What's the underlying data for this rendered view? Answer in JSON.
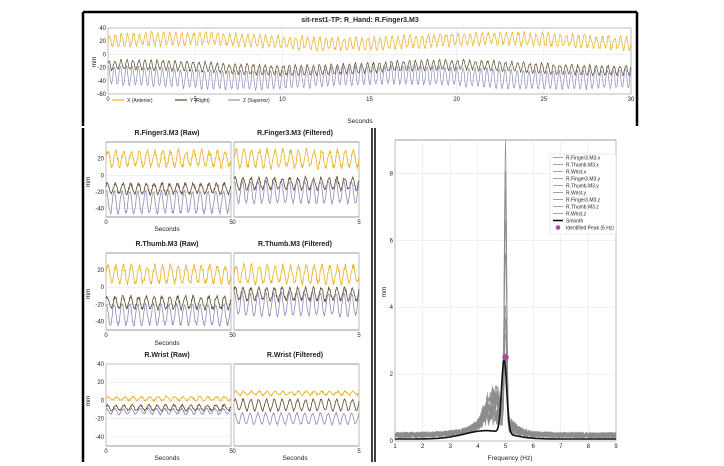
{
  "colors": {
    "x": "#e8b01c",
    "y": "#5a4a28",
    "z": "#8e8bb8",
    "spectrum": "#8c8c8c",
    "smooth": "#111111",
    "peak": "#b0479a"
  },
  "legend_top": {
    "x": "X (Anterior)",
    "y": "Y (Right)",
    "z": "Z (Superior)"
  },
  "chart_data": [
    {
      "id": "top",
      "type": "line",
      "title": "sit-rest1-TP: R_Hand: R.Finger3.M3",
      "xlabel": "Seconds",
      "ylabel": "mm",
      "xlim": [
        0,
        30
      ],
      "ylim": [
        -60,
        40
      ],
      "xticks": [
        0,
        5,
        10,
        15,
        20,
        25,
        30
      ],
      "yticks": [
        -60,
        -40,
        -20,
        0,
        20,
        40
      ],
      "frequency_hz": 2.9,
      "series": [
        {
          "name": "X (Anterior)",
          "offset": 20,
          "amplitude": 9,
          "noise": 3
        },
        {
          "name": "Y (Right)",
          "offset": -20,
          "amplitude": 7,
          "noise": 2
        },
        {
          "name": "Z (Superior)",
          "offset": -35,
          "amplitude": 14,
          "noise": 2
        }
      ]
    },
    {
      "id": "finger-raw",
      "type": "line",
      "title": "R.Finger3.M3 (Raw)",
      "xlabel": "Seconds",
      "ylabel": "mm",
      "xlim": [
        0,
        5
      ],
      "ylim": [
        -50,
        40
      ],
      "xticks": [
        0,
        5
      ],
      "yticks": [
        -40,
        -20,
        0,
        20
      ],
      "frequency_hz": 3.2,
      "series": [
        {
          "name": "x",
          "offset": 20,
          "amplitude": 9,
          "noise": 3
        },
        {
          "name": "y",
          "offset": -16,
          "amplitude": 6,
          "noise": 2
        },
        {
          "name": "z",
          "offset": -32,
          "amplitude": 13,
          "noise": 2
        }
      ]
    },
    {
      "id": "finger-filtered",
      "type": "line",
      "title": "R.Finger3.M3 (Filtered)",
      "xlabel": "",
      "ylabel": "",
      "xlim": [
        0,
        5
      ],
      "ylim": [
        -50,
        40
      ],
      "xticks": [
        0,
        5
      ],
      "yticks": [],
      "frequency_hz": 3.2,
      "series": [
        {
          "name": "x",
          "offset": 20,
          "amplitude": 10,
          "noise": 3
        },
        {
          "name": "y",
          "offset": -10,
          "amplitude": 7,
          "noise": 2
        },
        {
          "name": "z",
          "offset": -20,
          "amplitude": 13,
          "noise": 2
        }
      ]
    },
    {
      "id": "thumb-raw",
      "type": "line",
      "title": "R.Thumb.M3 (Raw)",
      "xlabel": "Seconds",
      "ylabel": "mm",
      "xlim": [
        0,
        5
      ],
      "ylim": [
        -50,
        40
      ],
      "xticks": [
        0,
        5
      ],
      "yticks": [
        -40,
        -20,
        0,
        20
      ],
      "frequency_hz": 3.2,
      "series": [
        {
          "name": "x",
          "offset": 15,
          "amplitude": 10,
          "noise": 3
        },
        {
          "name": "y",
          "offset": -18,
          "amplitude": 7,
          "noise": 2
        },
        {
          "name": "z",
          "offset": -32,
          "amplitude": 12,
          "noise": 2
        }
      ]
    },
    {
      "id": "thumb-filtered",
      "type": "line",
      "title": "R.Thumb.M3 (Filtered)",
      "xlabel": "",
      "ylabel": "",
      "xlim": [
        0,
        5
      ],
      "ylim": [
        -50,
        40
      ],
      "xticks": [
        0,
        5
      ],
      "yticks": [],
      "frequency_hz": 3.2,
      "series": [
        {
          "name": "x",
          "offset": 15,
          "amplitude": 10,
          "noise": 3
        },
        {
          "name": "y",
          "offset": -8,
          "amplitude": 7,
          "noise": 2
        },
        {
          "name": "z",
          "offset": -20,
          "amplitude": 13,
          "noise": 2
        }
      ]
    },
    {
      "id": "wrist-raw",
      "type": "line",
      "title": "R.Wrist (Raw)",
      "xlabel": "Seconds",
      "ylabel": "mm",
      "xlim": [
        0,
        5
      ],
      "ylim": [
        -50,
        40
      ],
      "xticks": [
        0,
        5
      ],
      "yticks": [
        -40,
        -20,
        0,
        20,
        40
      ],
      "frequency_hz": 3.0,
      "series": [
        {
          "name": "x",
          "offset": 2,
          "amplitude": 2,
          "noise": 1
        },
        {
          "name": "y",
          "offset": -8,
          "amplitude": 3,
          "noise": 1
        },
        {
          "name": "z",
          "offset": -12,
          "amplitude": 3,
          "noise": 1
        }
      ]
    },
    {
      "id": "wrist-filtered",
      "type": "line",
      "title": "R.Wrist (Filtered)",
      "xlabel": "Seconds",
      "ylabel": "",
      "xlim": [
        0,
        5
      ],
      "ylim": [
        -50,
        40
      ],
      "xticks": [
        0,
        5
      ],
      "yticks": [],
      "frequency_hz": 3.2,
      "series": [
        {
          "name": "x",
          "offset": 8,
          "amplitude": 2,
          "noise": 1
        },
        {
          "name": "y",
          "offset": -5,
          "amplitude": 6,
          "noise": 1
        },
        {
          "name": "z",
          "offset": -20,
          "amplitude": 6,
          "noise": 1
        }
      ]
    },
    {
      "id": "spectrum",
      "type": "line",
      "title": "",
      "xlabel": "Frequency (Hz)",
      "ylabel": "mm",
      "xlim": [
        1,
        9
      ],
      "ylim": [
        0,
        9
      ],
      "xticks": [
        1,
        2,
        3,
        4,
        5,
        6,
        7,
        8,
        9
      ],
      "yticks": [
        0,
        2,
        4,
        6,
        8
      ],
      "legend": [
        "R.Finger3.M3.x",
        "R.Thumb.M3.x",
        "R.Wrist.x",
        "R.Finger3.M3.y",
        "R.Thumb.M3.y",
        "R.Wrist.y",
        "R.Finger3.M3.z",
        "R.Thumb.M3.z",
        "R.Wrist.z",
        "Smooth",
        "Identified Peak (5 Hz)"
      ],
      "spectra_peak_heights": [
        8.3,
        7.6,
        6.6,
        5.9,
        5.2,
        3.7,
        3.1,
        2.6,
        2.0
      ],
      "smooth_peak": 2.5,
      "peak": {
        "x": 5,
        "y": 2.5,
        "label": "Identified Peak (5 Hz)"
      }
    }
  ]
}
